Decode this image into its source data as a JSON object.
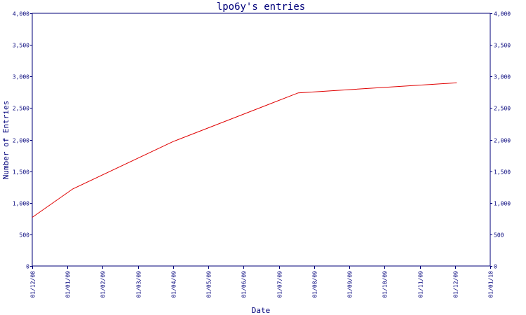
{
  "colors": {
    "axis": "#00007a",
    "series": "#e00000",
    "background": "#ffffff"
  },
  "chart_data": {
    "type": "line",
    "title": "lpo6y's entries",
    "xlabel": "Date",
    "ylabel": "Number of Entries",
    "x_tick_labels": [
      "01/12/08",
      "01/01/09",
      "01/02/09",
      "01/03/09",
      "01/04/09",
      "01/05/09",
      "01/06/09",
      "01/07/09",
      "01/08/09",
      "01/09/09",
      "01/10/09",
      "01/11/09",
      "01/12/09",
      "01/01/10"
    ],
    "y_tick_labels": [
      "0",
      "500",
      "1,000",
      "1,500",
      "2,000",
      "2,500",
      "3,000",
      "3,500",
      "4,000"
    ],
    "y_ticks": [
      0,
      500,
      1000,
      1500,
      2000,
      2500,
      3000,
      3500,
      4000
    ],
    "ylim": [
      0,
      4000
    ],
    "x_range_months": [
      0,
      13
    ],
    "grid": false,
    "legend": "none",
    "series": [
      {
        "x": [
          0,
          1.15,
          4.0,
          7.55,
          12.05
        ],
        "values": [
          770,
          1220,
          1970,
          2740,
          2900
        ]
      }
    ]
  }
}
